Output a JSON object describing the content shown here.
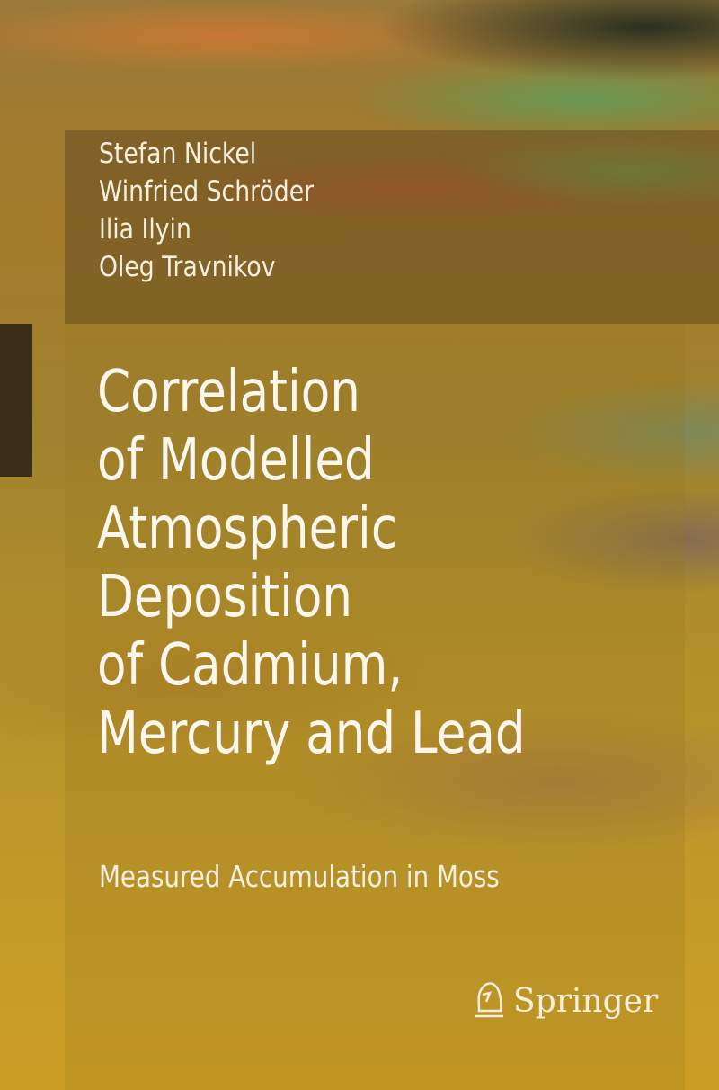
{
  "book": {
    "authors": [
      "Stefan Nickel",
      "Winfried Schröder",
      "Ilia Ilyin",
      "Oleg Travnikov"
    ],
    "title_lines": [
      "Correlation",
      "of Modelled",
      "Atmospheric",
      "Deposition",
      "of Cadmium,",
      "Mercury and Lead"
    ],
    "subtitle": "Measured Accumulation in Moss",
    "publisher": "Springer",
    "publisher_icon": "springer-knight-icon",
    "colors": {
      "text": "#fbf7ee",
      "background_base": "#b2902a",
      "spine_mark": "#3b2e16"
    }
  }
}
